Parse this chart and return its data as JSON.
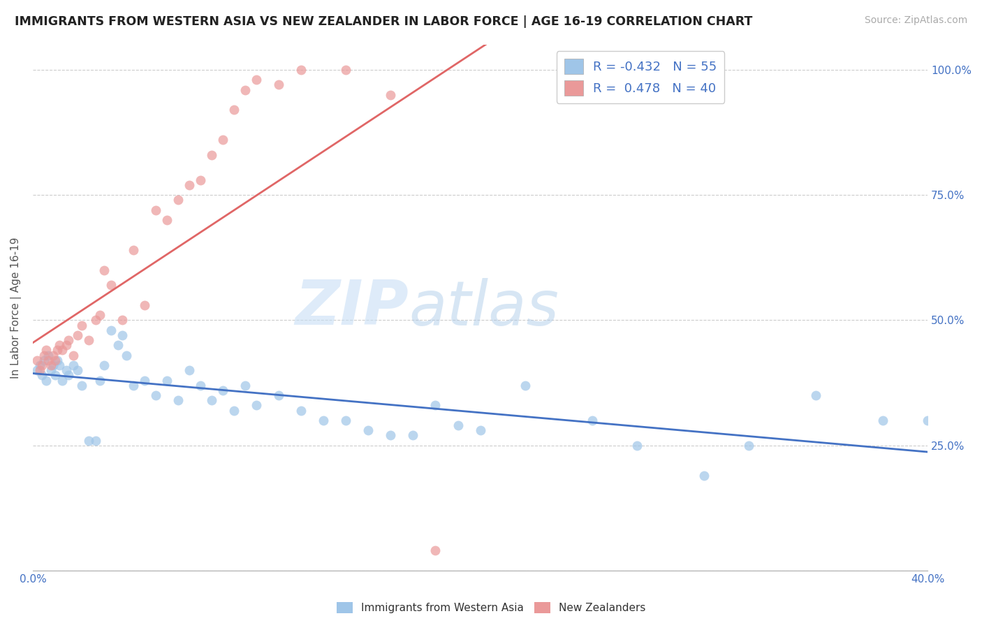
{
  "title": "IMMIGRANTS FROM WESTERN ASIA VS NEW ZEALANDER IN LABOR FORCE | AGE 16-19 CORRELATION CHART",
  "source": "Source: ZipAtlas.com",
  "ylabel": "In Labor Force | Age 16-19",
  "legend_label1": "Immigrants from Western Asia",
  "legend_label2": "New Zealanders",
  "R1": -0.432,
  "N1": 55,
  "R2": 0.478,
  "N2": 40,
  "color_blue": "#9fc5e8",
  "color_pink": "#ea9999",
  "line_color_blue": "#4472c4",
  "line_color_pink": "#e06666",
  "watermark_zip": "ZIP",
  "watermark_atlas": "atlas",
  "blue_x": [
    0.002,
    0.003,
    0.004,
    0.005,
    0.006,
    0.007,
    0.008,
    0.009,
    0.01,
    0.011,
    0.012,
    0.013,
    0.015,
    0.016,
    0.018,
    0.02,
    0.022,
    0.025,
    0.028,
    0.03,
    0.032,
    0.035,
    0.038,
    0.04,
    0.042,
    0.045,
    0.05,
    0.055,
    0.06,
    0.065,
    0.07,
    0.075,
    0.08,
    0.085,
    0.09,
    0.095,
    0.1,
    0.11,
    0.12,
    0.13,
    0.14,
    0.15,
    0.16,
    0.17,
    0.18,
    0.19,
    0.2,
    0.22,
    0.25,
    0.27,
    0.3,
    0.32,
    0.35,
    0.38,
    0.4
  ],
  "blue_y": [
    0.4,
    0.41,
    0.39,
    0.42,
    0.38,
    0.43,
    0.4,
    0.41,
    0.39,
    0.42,
    0.41,
    0.38,
    0.4,
    0.39,
    0.41,
    0.4,
    0.37,
    0.26,
    0.26,
    0.38,
    0.41,
    0.48,
    0.45,
    0.47,
    0.43,
    0.37,
    0.38,
    0.35,
    0.38,
    0.34,
    0.4,
    0.37,
    0.34,
    0.36,
    0.32,
    0.37,
    0.33,
    0.35,
    0.32,
    0.3,
    0.3,
    0.28,
    0.27,
    0.27,
    0.33,
    0.29,
    0.28,
    0.37,
    0.3,
    0.25,
    0.19,
    0.25,
    0.35,
    0.3,
    0.3
  ],
  "pink_x": [
    0.002,
    0.003,
    0.004,
    0.005,
    0.006,
    0.007,
    0.008,
    0.009,
    0.01,
    0.011,
    0.012,
    0.013,
    0.015,
    0.016,
    0.018,
    0.02,
    0.022,
    0.025,
    0.028,
    0.03,
    0.032,
    0.035,
    0.04,
    0.045,
    0.05,
    0.055,
    0.06,
    0.065,
    0.07,
    0.075,
    0.08,
    0.085,
    0.09,
    0.095,
    0.1,
    0.11,
    0.12,
    0.14,
    0.16,
    0.18
  ],
  "pink_y": [
    0.42,
    0.4,
    0.41,
    0.43,
    0.44,
    0.42,
    0.41,
    0.43,
    0.42,
    0.44,
    0.45,
    0.44,
    0.45,
    0.46,
    0.43,
    0.47,
    0.49,
    0.46,
    0.5,
    0.51,
    0.6,
    0.57,
    0.5,
    0.64,
    0.53,
    0.72,
    0.7,
    0.74,
    0.77,
    0.78,
    0.83,
    0.86,
    0.92,
    0.96,
    0.98,
    0.97,
    1.0,
    1.0,
    0.95,
    0.04
  ],
  "xlim": [
    0.0,
    0.4
  ],
  "ylim": [
    0.0,
    1.05
  ],
  "yticks": [
    0.0,
    0.25,
    0.5,
    0.75,
    1.0
  ],
  "ytick_labels_right": [
    "100.0%",
    "75.0%",
    "50.0%",
    "25.0%"
  ],
  "ytick_values_right": [
    1.0,
    0.75,
    0.5,
    0.25
  ],
  "xticks": [
    0.0,
    0.05,
    0.1,
    0.15,
    0.2,
    0.25,
    0.3,
    0.35,
    0.4
  ]
}
